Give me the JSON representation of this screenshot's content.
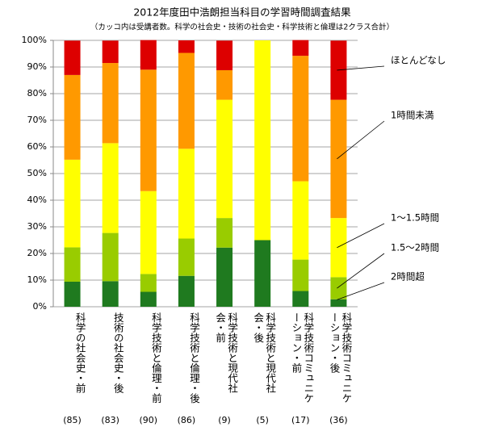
{
  "chart_data": {
    "type": "stacked_bar",
    "title": "2012年度田中浩朗担当科目の学習時間調査結果",
    "subtitle": "（カッコ内は受講者数。科学の社会史・技術の社会史・科学技術と倫理は2クラス合計）",
    "categories": [
      "科学の社会史・前",
      "技術の社会史・後",
      "科学技術と倫理・前",
      "科学技術と倫理・後",
      "科学技術と現代社会・前",
      "科学技術と現代社会・後",
      "科学技術コミュニケーション・前",
      "科学技術コミュニケーション・後"
    ],
    "counts": [
      "(85)",
      "(83)",
      "(90)",
      "(86)",
      "(9)",
      "(5)",
      "(17)",
      "(36)"
    ],
    "series": [
      {
        "name": "2時間超",
        "color": "#1f7a1f",
        "values": [
          9.4,
          9.6,
          5.6,
          11.6,
          22.2,
          25,
          5.9,
          2.8
        ]
      },
      {
        "name": "1.5〜2時間",
        "color": "#99cc00",
        "values": [
          12.9,
          18.1,
          6.7,
          14.0,
          11.1,
          0,
          11.8,
          8.3
        ]
      },
      {
        "name": "1〜1.5時間",
        "color": "#ffff00",
        "values": [
          32.9,
          33.7,
          31.1,
          33.7,
          44.4,
          75,
          29.4,
          22.2
        ]
      },
      {
        "name": "1時間未満",
        "color": "#ff9900",
        "values": [
          31.8,
          30.1,
          45.6,
          36.0,
          11.1,
          0,
          47.1,
          44.4
        ]
      },
      {
        "name": "ほとんどなし",
        "color": "#dd0000",
        "values": [
          12.9,
          8.4,
          11.1,
          4.7,
          11.1,
          0,
          5.9,
          22.2
        ]
      }
    ],
    "ylim": [
      0,
      100
    ],
    "yticks": [
      {
        "value": 0,
        "label": "0%"
      },
      {
        "value": 10,
        "label": "10%"
      },
      {
        "value": 20,
        "label": "20%"
      },
      {
        "value": 30,
        "label": "30%"
      },
      {
        "value": 40,
        "label": "40%"
      },
      {
        "value": 50,
        "label": "50%"
      },
      {
        "value": 60,
        "label": "60%"
      },
      {
        "value": 70,
        "label": "70%"
      },
      {
        "value": 80,
        "label": "80%"
      },
      {
        "value": 90,
        "label": "90%"
      },
      {
        "value": 100,
        "label": "100%"
      }
    ],
    "grid": true
  }
}
